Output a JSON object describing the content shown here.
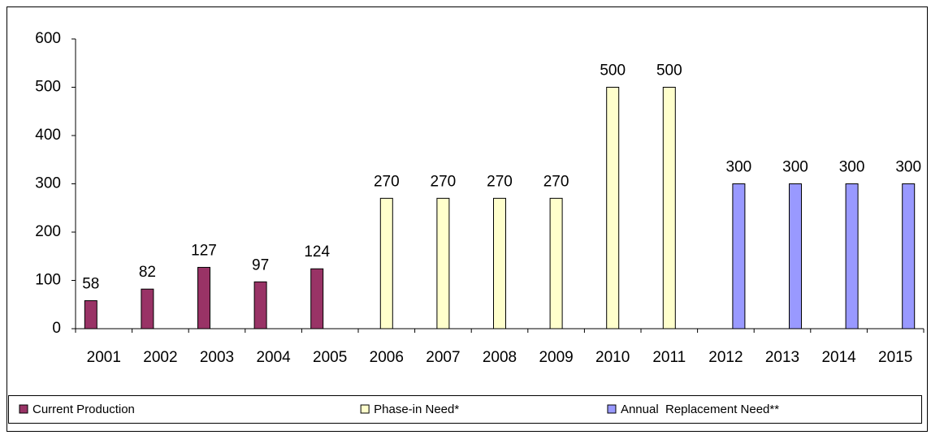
{
  "chart_data": {
    "type": "bar",
    "categories": [
      "2001",
      "2002",
      "2003",
      "2004",
      "2005",
      "2006",
      "2007",
      "2008",
      "2009",
      "2010",
      "2011",
      "2012",
      "2013",
      "2014",
      "2015"
    ],
    "series": [
      {
        "name": "Current Production",
        "color": "#993366",
        "values": [
          58,
          82,
          127,
          97,
          124,
          null,
          null,
          null,
          null,
          null,
          null,
          null,
          null,
          null,
          null
        ]
      },
      {
        "name": "Phase-in Need*",
        "color": "#ffffcc",
        "values": [
          null,
          null,
          null,
          null,
          null,
          270,
          270,
          270,
          270,
          500,
          500,
          null,
          null,
          null,
          null
        ]
      },
      {
        "name": "Annual  Replacement Need**",
        "color": "#9999ff",
        "values": [
          null,
          null,
          null,
          null,
          null,
          null,
          null,
          null,
          null,
          null,
          null,
          300,
          300,
          300,
          300
        ]
      }
    ],
    "ylim": [
      0,
      600
    ],
    "yticks": [
      0,
      100,
      200,
      300,
      400,
      500,
      600
    ],
    "grid": false,
    "legend": "bottom"
  }
}
